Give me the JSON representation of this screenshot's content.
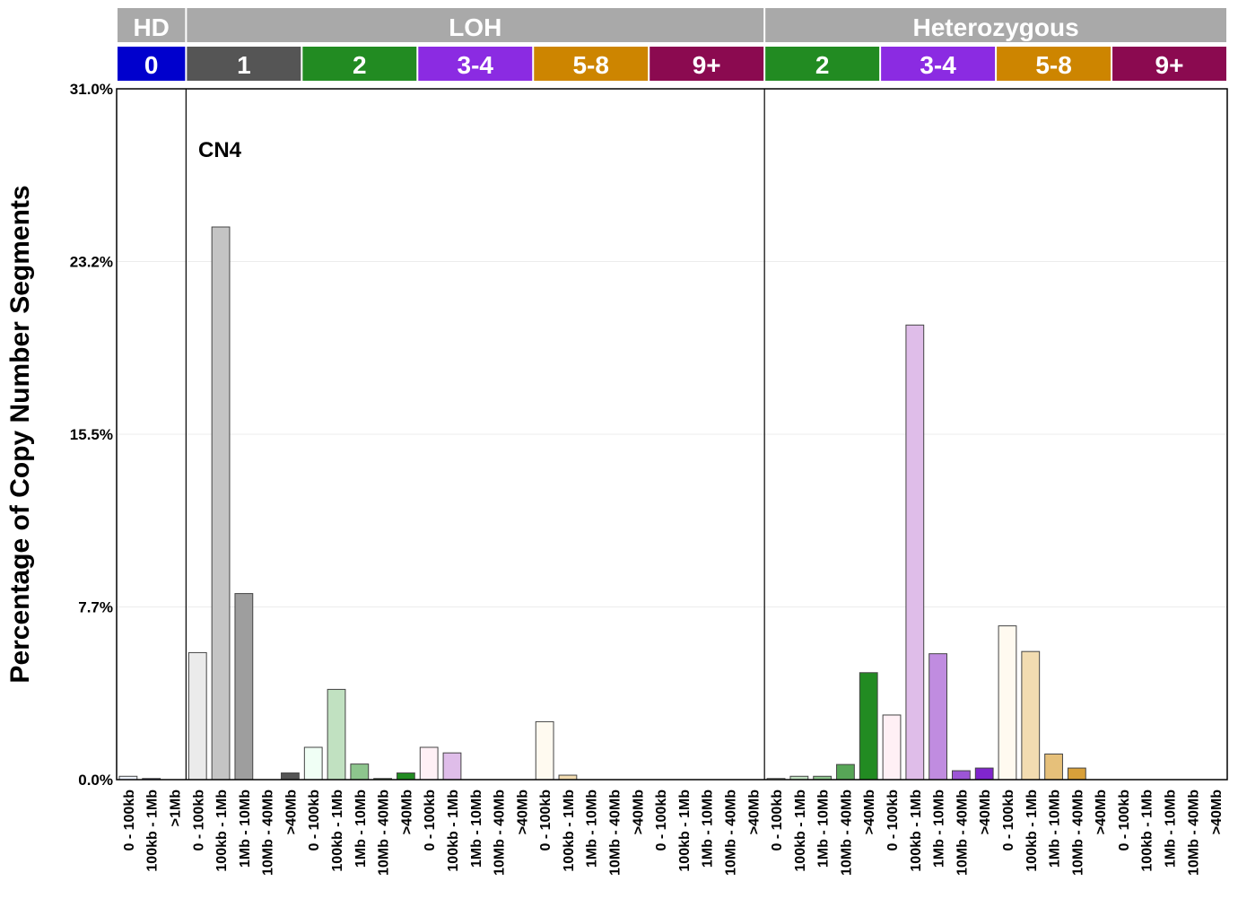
{
  "chart_data": {
    "type": "bar",
    "title": "",
    "annotation": "CN4",
    "ylabel": "Percentage of Copy Number Segments",
    "xlabel": "",
    "ylim": [
      0,
      31
    ],
    "yticks": [
      "0.0%",
      "7.7%",
      "15.5%",
      "23.2%",
      "31.0%"
    ],
    "ytick_values": [
      0,
      7.75,
      15.5,
      23.25,
      31
    ],
    "grid": true,
    "top_groups": [
      {
        "label": "HD",
        "subgroups": [
          "0"
        ]
      },
      {
        "label": "LOH",
        "subgroups": [
          "1",
          "2",
          "3-4",
          "5-8",
          "9+"
        ]
      },
      {
        "label": "Heterozygous",
        "subgroups": [
          "2",
          "3-4",
          "5-8",
          "9+"
        ]
      }
    ],
    "subgroup_colors": {
      "0": "#0000cd",
      "1": "#555555",
      "2": "#228b22",
      "3-4": "#8b2be2",
      "5-8": "#cd8500",
      "9+": "#8b0a50"
    },
    "header_color": "#a9a9a9",
    "panels": [
      {
        "group": "HD",
        "sub": "0",
        "categories": [
          "0 - 100kb",
          "100kb - 1Mb",
          ">1Mb"
        ],
        "values": [
          0.15,
          0.05,
          0
        ],
        "colors": [
          "#eef3ff",
          "#4a5aa8",
          "#0000cd"
        ]
      },
      {
        "group": "LOH",
        "sub": "1",
        "categories": [
          "0 - 100kb",
          "100kb - 1Mb",
          "1Mb - 10Mb",
          "10Mb - 40Mb",
          ">40Mb"
        ],
        "values": [
          5.7,
          24.8,
          8.35,
          0,
          0.3
        ],
        "colors": [
          "#ebebeb",
          "#c4c4c4",
          "#9e9e9e",
          "#777777",
          "#555555"
        ]
      },
      {
        "group": "LOH",
        "sub": "2",
        "categories": [
          "0 - 100kb",
          "100kb - 1Mb",
          "1Mb - 10Mb",
          "10Mb - 40Mb",
          ">40Mb"
        ],
        "values": [
          1.45,
          4.05,
          0.7,
          0.05,
          0.3
        ],
        "colors": [
          "#f0fff5",
          "#c1e1c1",
          "#8dc58d",
          "#57a657",
          "#228b22"
        ]
      },
      {
        "group": "LOH",
        "sub": "3-4",
        "categories": [
          "0 - 100kb",
          "100kb - 1Mb",
          "1Mb - 10Mb",
          "10Mb - 40Mb",
          ">40Mb"
        ],
        "values": [
          1.45,
          1.2,
          0,
          0,
          0
        ],
        "colors": [
          "#fff0f5",
          "#dfbde9",
          "#c08ce0",
          "#9c55d6",
          "#8026cd"
        ]
      },
      {
        "group": "LOH",
        "sub": "5-8",
        "categories": [
          "0 - 100kb",
          "100kb - 1Mb",
          "1Mb - 10Mb",
          "10Mb - 40Mb",
          ">40Mb"
        ],
        "values": [
          2.6,
          0.2,
          0,
          0,
          0
        ],
        "colors": [
          "#fffaf0",
          "#f2dcb1",
          "#e6c07a",
          "#d8a03a",
          "#cd8500"
        ]
      },
      {
        "group": "LOH",
        "sub": "9+",
        "categories": [
          "0 - 100kb",
          "100kb - 1Mb",
          "1Mb - 10Mb",
          "10Mb - 40Mb",
          ">40Mb"
        ],
        "values": [
          0,
          0,
          0,
          0,
          0
        ],
        "colors": [
          "#fbe9f0",
          "#e6a8c4",
          "#c86a96",
          "#a83a70",
          "#8b0a50"
        ]
      },
      {
        "group": "Heterozygous",
        "sub": "2",
        "categories": [
          "0 - 100kb",
          "100kb - 1Mb",
          "1Mb - 10Mb",
          "10Mb - 40Mb",
          ">40Mb"
        ],
        "values": [
          0.05,
          0.15,
          0.15,
          0.68,
          4.8
        ],
        "colors": [
          "#f0fff5",
          "#c1e1c1",
          "#8dc58d",
          "#57a657",
          "#228b22"
        ]
      },
      {
        "group": "Heterozygous",
        "sub": "3-4",
        "categories": [
          "0 - 100kb",
          "100kb - 1Mb",
          "1Mb - 10Mb",
          "10Mb - 40Mb",
          ">40Mb"
        ],
        "values": [
          2.9,
          20.4,
          5.65,
          0.4,
          0.52
        ],
        "colors": [
          "#fff0f5",
          "#dfbde9",
          "#c08ce0",
          "#9c55d6",
          "#8026cd"
        ]
      },
      {
        "group": "Heterozygous",
        "sub": "5-8",
        "categories": [
          "0 - 100kb",
          "100kb - 1Mb",
          "1Mb - 10Mb",
          "10Mb - 40Mb",
          ">40Mb"
        ],
        "values": [
          6.9,
          5.75,
          1.15,
          0.52,
          0
        ],
        "colors": [
          "#fffaf0",
          "#f2dcb1",
          "#e6c07a",
          "#d8a03a",
          "#cd8500"
        ]
      },
      {
        "group": "Heterozygous",
        "sub": "9+",
        "categories": [
          "0 - 100kb",
          "100kb - 1Mb",
          "1Mb - 10Mb",
          "10Mb - 40Mb",
          ">40Mb"
        ],
        "values": [
          0,
          0,
          0,
          0,
          0
        ],
        "colors": [
          "#fbe9f0",
          "#e6a8c4",
          "#c86a96",
          "#a83a70",
          "#8b0a50"
        ]
      }
    ]
  }
}
